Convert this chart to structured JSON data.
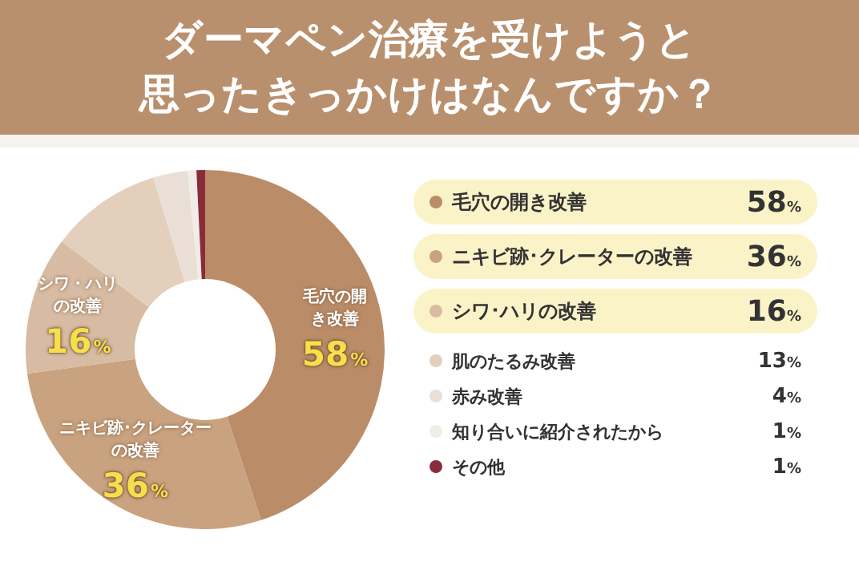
{
  "chart_data": {
    "type": "donut",
    "title": "ダーマペン治療を受けようと",
    "subtitle": "思ったきっかけはなんですか？",
    "categories": [
      "毛穴の開き改善",
      "ニキビ跡･クレーターの改善",
      "シワ･ハリの改善",
      "肌のたるみ改善",
      "赤み改善",
      "知り合いに紹介されたから",
      "その他"
    ],
    "values": [
      58,
      36,
      16,
      13,
      4,
      1,
      1
    ],
    "value_labels": [
      "58%",
      "36%",
      "16%",
      "13%",
      "4%",
      "1%",
      "1%"
    ],
    "colors": [
      "#bb8c68",
      "#c9a27f",
      "#d7bba2",
      "#e4cfbd",
      "#e9dfd6",
      "#f1ece6",
      "#8a2b3c"
    ],
    "annotations": [
      "毛穴の開き改善",
      "ニキビ跡･クレーターの改善",
      "シワ・ハリの改善"
    ],
    "legend": "right"
  }
}
